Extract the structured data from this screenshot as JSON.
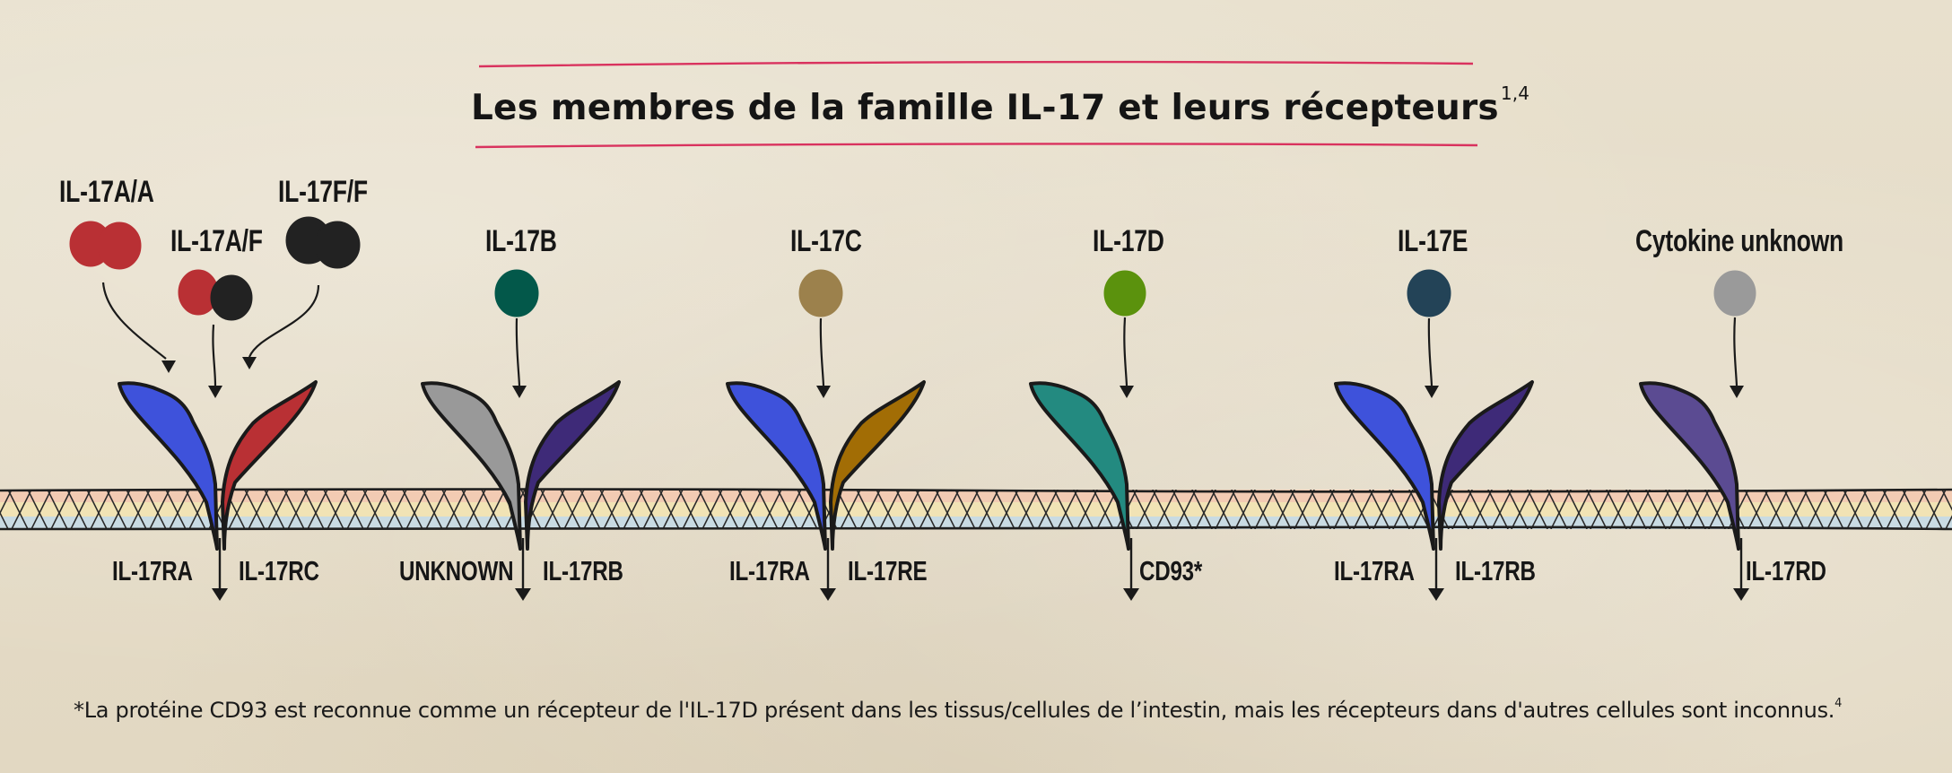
{
  "title": {
    "text": "Les membres de la famille IL-17 et leurs récepteurs",
    "ref": "1,4"
  },
  "cytokines": [
    {
      "label": "IL-17A/A",
      "colors": [
        "#b93034",
        "#b93034"
      ]
    },
    {
      "label": "IL-17A/F",
      "colors": [
        "#b93034",
        "#222222"
      ]
    },
    {
      "label": "IL-17F/F",
      "colors": [
        "#222222",
        "#222222"
      ]
    },
    {
      "label": "IL-17B",
      "colors": [
        "#03584a"
      ]
    },
    {
      "label": "IL-17C",
      "colors": [
        "#9c814c"
      ]
    },
    {
      "label": "IL-17D",
      "colors": [
        "#5b920d"
      ]
    },
    {
      "label": "IL-17E",
      "colors": [
        "#234357"
      ]
    },
    {
      "label": "Cytokine unknown",
      "colors": [
        "#9a9a9a"
      ]
    }
  ],
  "receptors": [
    {
      "left": "IL-17RA",
      "right": "IL-17RC",
      "left_color": "#3e52db",
      "right_color": "#b93034"
    },
    {
      "left": "UNKNOWN",
      "right": "IL-17RB",
      "left_color": "#999999",
      "right_color": "#3e2a78"
    },
    {
      "left": "IL-17RA",
      "right": "IL-17RE",
      "left_color": "#3e52db",
      "right_color": "#a26d05"
    },
    {
      "left": "",
      "right": "CD93*",
      "left_color": "#238a80",
      "right_color": ""
    },
    {
      "left": "IL-17RA",
      "right": "IL-17RB",
      "left_color": "#3e52db",
      "right_color": "#3e2a78"
    },
    {
      "left": "",
      "right": "IL-17RD",
      "left_color": "#5b4b92",
      "right_color": ""
    }
  ],
  "membrane": {
    "top_color": "#f2cbb3",
    "mid_color": "#f1e3b5",
    "bottom_color": "#c9dbe3"
  },
  "footnote": {
    "text": "*La protéine CD93 est reconnue comme un récepteur de l'IL-17D présent dans les tissus/cellules de l’intestin, mais les récepteurs dans d'autres cellules sont inconnus.",
    "ref": "4"
  },
  "accent_line_color": "#d9325e"
}
